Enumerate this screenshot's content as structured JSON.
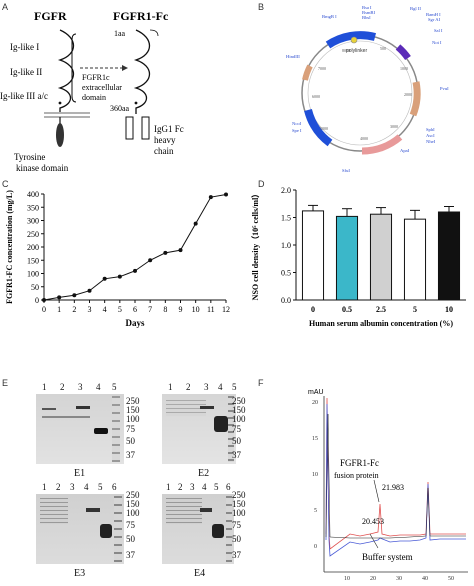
{
  "panels": {
    "a": "A",
    "b": "B",
    "c": "C",
    "d": "D",
    "e": "E",
    "f": "F"
  },
  "panel_a": {
    "title_left": "FGFR",
    "title_right": "FGFR1-Fc",
    "ig1": "Ig-like I",
    "ig2": "Ig-like II",
    "ig3": "Ig-like III a/c",
    "aa1": "1aa",
    "aa360": "360aa",
    "ext_domain": "FGFR1c extracellular domain",
    "kinase": "Tyrosine kinase domain",
    "fc": "IgG1 Fc heavy chain"
  },
  "panel_b": {
    "labels": [
      "BmgB I",
      "Bgl II",
      "NheI",
      "Spe I",
      "NcoI",
      "AscI",
      "SphI",
      "SfuI",
      "ApaI",
      "PvuI",
      "Bsa I",
      "BsmBI",
      "BbsI",
      "Sal I",
      "Not I",
      "BamH I",
      "Sgr AI",
      "polylinker",
      "HindIII",
      "NcoI"
    ]
  },
  "chart_data": [
    {
      "type": "line",
      "panel": "C",
      "xlabel": "Days",
      "ylabel": "FGFR1-FC concentration (mg/L)",
      "x": [
        0,
        1,
        2,
        3,
        4,
        5,
        6,
        7,
        8,
        9,
        10,
        11,
        12
      ],
      "values": [
        0,
        10,
        18,
        35,
        80,
        88,
        110,
        150,
        178,
        188,
        288,
        388,
        398
      ],
      "xticks": [
        "0",
        "1",
        "2",
        "3",
        "4",
        "5",
        "6",
        "7",
        "8",
        "9",
        "10",
        "11",
        "12"
      ],
      "yticks": [
        "0",
        "50",
        "100",
        "150",
        "200",
        "250",
        "300",
        "350",
        "400"
      ],
      "ylim": [
        0,
        400
      ],
      "xlim": [
        0,
        12
      ]
    },
    {
      "type": "bar",
      "panel": "D",
      "xlabel": "Human serum albumin concentration (%)",
      "ylabel": "NSO cell density（10⁵ cells/ml）",
      "categories": [
        "0",
        "0.5",
        "2.5",
        "5",
        "10"
      ],
      "values": [
        1.62,
        1.52,
        1.56,
        1.47,
        1.6
      ],
      "errors": [
        0.1,
        0.14,
        0.12,
        0.16,
        0.1
      ],
      "colors": [
        "#ffffff",
        "#3bb7c9",
        "#d0d0d0",
        "#ffffff",
        "#111111"
      ],
      "yticks": [
        "0.0",
        "0.5",
        "1.0",
        "1.5",
        "2.0"
      ],
      "ylim": [
        0,
        2.0
      ]
    }
  ],
  "panel_e": {
    "gels": [
      {
        "caption": "E1",
        "lanes": [
          "1",
          "2",
          "3",
          "4",
          "5"
        ]
      },
      {
        "caption": "E2",
        "lanes": [
          "1",
          "2",
          "3",
          "4",
          "5"
        ]
      },
      {
        "caption": "E3",
        "lanes": [
          "1",
          "2",
          "3",
          "4",
          "5",
          "6"
        ]
      },
      {
        "caption": "E4",
        "lanes": [
          "1",
          "2",
          "3",
          "4",
          "5",
          "6"
        ]
      }
    ],
    "markers": [
      "250",
      "150",
      "100",
      "75",
      "50",
      "37"
    ]
  },
  "panel_f": {
    "yunit": "mAU",
    "yticks": [
      "20",
      "15",
      "10",
      "5",
      "0"
    ],
    "xticks": [
      "10",
      "20",
      "30",
      "40",
      "50"
    ],
    "label1": "FGFR1-Fc",
    "label2": "fusion protein",
    "peak1": "21.983",
    "peak2": "20.453",
    "label3": "Buffer system"
  }
}
